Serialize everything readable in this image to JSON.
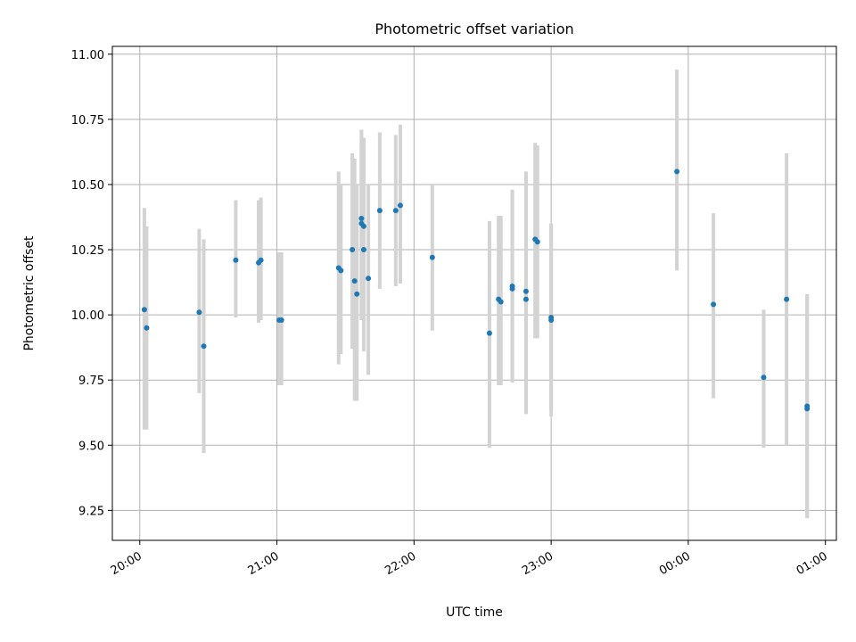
{
  "chart_data": {
    "type": "scatter",
    "title": "Photometric offset variation",
    "xlabel": "UTC time",
    "ylabel": "Photometric offset",
    "grid": true,
    "x_is_time": true,
    "x_tick_labels": [
      "20:00",
      "21:00",
      "22:00",
      "23:00",
      "00:00",
      "01:00"
    ],
    "x_ticks_hours": [
      20,
      21,
      22,
      23,
      24,
      25
    ],
    "xlim_hours": [
      19.8,
      25.08
    ],
    "y_tick_labels": [
      "9.25",
      "9.50",
      "9.75",
      "10.00",
      "10.25",
      "10.50",
      "10.75",
      "11.00"
    ],
    "y_ticks": [
      9.25,
      9.5,
      9.75,
      10.0,
      10.25,
      10.5,
      10.75,
      11.0
    ],
    "ylim": [
      9.135,
      11.03
    ],
    "colors": {
      "point": "#1f77b4",
      "errorbar": "#d3d3d3",
      "grid": "#b0b0b0"
    },
    "points": [
      {
        "t": "20:02",
        "y": 10.02,
        "err_low": 9.56,
        "err_high": 10.41
      },
      {
        "t": "20:03",
        "y": 9.95,
        "err_low": 9.56,
        "err_high": 10.34
      },
      {
        "t": "20:26",
        "y": 10.01,
        "err_low": 9.7,
        "err_high": 10.33
      },
      {
        "t": "20:28",
        "y": 9.88,
        "err_low": 9.47,
        "err_high": 10.29
      },
      {
        "t": "20:42",
        "y": 10.21,
        "err_low": 9.99,
        "err_high": 10.44
      },
      {
        "t": "20:52",
        "y": 10.2,
        "err_low": 9.97,
        "err_high": 10.44
      },
      {
        "t": "20:53",
        "y": 10.21,
        "err_low": 9.98,
        "err_high": 10.45
      },
      {
        "t": "21:01",
        "y": 9.98,
        "err_low": 9.73,
        "err_high": 10.24
      },
      {
        "t": "21:02",
        "y": 9.98,
        "err_low": 9.73,
        "err_high": 10.24
      },
      {
        "t": "21:27",
        "y": 10.18,
        "err_low": 9.81,
        "err_high": 10.55
      },
      {
        "t": "21:28",
        "y": 10.17,
        "err_low": 9.85,
        "err_high": 10.5
      },
      {
        "t": "21:33",
        "y": 10.25,
        "err_low": 9.87,
        "err_high": 10.62
      },
      {
        "t": "21:34",
        "y": 10.13,
        "err_low": 9.67,
        "err_high": 10.6
      },
      {
        "t": "21:35",
        "y": 10.08,
        "err_low": 9.67,
        "err_high": 10.5
      },
      {
        "t": "21:37",
        "y": 10.37,
        "err_low": 9.98,
        "err_high": 10.71
      },
      {
        "t": "21:37",
        "y": 10.35,
        "err_low": 9.98,
        "err_high": 10.71
      },
      {
        "t": "21:38",
        "y": 10.34,
        "err_low": 9.99,
        "err_high": 10.68
      },
      {
        "t": "21:38",
        "y": 10.25,
        "err_low": 9.86,
        "err_high": 10.64
      },
      {
        "t": "21:40",
        "y": 10.14,
        "err_low": 9.77,
        "err_high": 10.5
      },
      {
        "t": "21:45",
        "y": 10.4,
        "err_low": 10.1,
        "err_high": 10.7
      },
      {
        "t": "21:52",
        "y": 10.4,
        "err_low": 10.11,
        "err_high": 10.69
      },
      {
        "t": "21:54",
        "y": 10.42,
        "err_low": 10.12,
        "err_high": 10.73
      },
      {
        "t": "22:08",
        "y": 10.22,
        "err_low": 9.94,
        "err_high": 10.5
      },
      {
        "t": "22:33",
        "y": 9.93,
        "err_low": 9.49,
        "err_high": 10.36
      },
      {
        "t": "22:37",
        "y": 10.06,
        "err_low": 9.73,
        "err_high": 10.38
      },
      {
        "t": "22:38",
        "y": 10.05,
        "err_low": 9.73,
        "err_high": 10.38
      },
      {
        "t": "22:43",
        "y": 10.11,
        "err_low": 9.74,
        "err_high": 10.47
      },
      {
        "t": "22:43",
        "y": 10.1,
        "err_low": 9.74,
        "err_high": 10.48
      },
      {
        "t": "22:49",
        "y": 10.09,
        "err_low": 9.62,
        "err_high": 10.55
      },
      {
        "t": "22:49",
        "y": 10.06,
        "err_low": 9.62,
        "err_high": 10.55
      },
      {
        "t": "22:53",
        "y": 10.29,
        "err_low": 9.91,
        "err_high": 10.66
      },
      {
        "t": "22:54",
        "y": 10.28,
        "err_low": 9.91,
        "err_high": 10.65
      },
      {
        "t": "23:00",
        "y": 9.99,
        "err_low": 9.64,
        "err_high": 10.35
      },
      {
        "t": "23:00",
        "y": 9.98,
        "err_low": 9.61,
        "err_high": 10.35
      },
      {
        "t": "23:55",
        "y": 10.55,
        "err_low": 10.17,
        "err_high": 10.94
      },
      {
        "t": "00:11",
        "y": 10.04,
        "err_low": 9.68,
        "err_high": 10.39
      },
      {
        "t": "00:33",
        "y": 9.76,
        "err_low": 9.49,
        "err_high": 10.02
      },
      {
        "t": "00:43",
        "y": 10.06,
        "err_low": 9.5,
        "err_high": 10.62
      },
      {
        "t": "00:52",
        "y": 9.65,
        "err_low": 9.22,
        "err_high": 10.07
      },
      {
        "t": "00:52",
        "y": 9.64,
        "err_low": 9.22,
        "err_high": 10.08
      }
    ]
  }
}
